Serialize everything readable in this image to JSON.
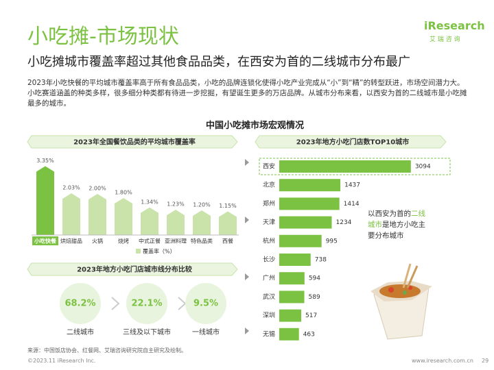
{
  "header": {
    "title": "小吃摊-市场现状",
    "subtitle": "小吃摊城市覆盖率超过其他食品品类，在西安为首的二线城市分布最广",
    "logo": "iResearch",
    "logo_sub": "艾 瑞 咨 询"
  },
  "body_text": "2023年小吃快餐的平均城市覆盖率高于所有食品品类，小吃的品牌连锁化使得小吃产业完成从“小”到“精”的转型跃进，市场空间潜力大。小吃赛道涵盖的种类多样，很多细分种类都有待进一步挖掘，有望诞生更多的万店品牌。从城市分布来看，以西安为首的二线城市是小吃摊最多的城市。",
  "section_title": "中国小吃摊市场宏观情况",
  "chart_data": [
    {
      "type": "bar",
      "title": "2023年全国餐饮品类的平均城市覆盖率",
      "categories": [
        "小吃快餐",
        "烘焙甜品",
        "火锅",
        "烧烤",
        "中式正餐",
        "亚洲料理",
        "特色品类",
        "西餐"
      ],
      "values": [
        3.35,
        2.03,
        2.0,
        1.8,
        1.34,
        1.23,
        1.2,
        1.15
      ],
      "value_labels": [
        "3.35%",
        "2.03%",
        "2.00%",
        "1.80%",
        "1.34%",
        "1.23%",
        "1.20%",
        "1.15%"
      ],
      "color": "#c9e3ab",
      "highlight_color": "#7cc242",
      "legend": "覆盖率（%）"
    },
    {
      "type": "hbar",
      "title": "2023年地方小吃门店数TOP10城市",
      "categories": [
        "西安",
        "北京",
        "郑州",
        "天津",
        "杭州",
        "长沙",
        "广州",
        "武汉",
        "深圳",
        "无锡"
      ],
      "values": [
        3094,
        1437,
        1414,
        1234,
        995,
        738,
        594,
        589,
        517,
        463
      ],
      "color": "#7cc242"
    },
    {
      "type": "stat",
      "title": "2023年地方小吃门店城市线分布比较",
      "categories": [
        "二线城市",
        "三线及以下城市",
        "一线城市"
      ],
      "values": [
        68.2,
        22.1,
        9.5
      ],
      "value_labels": [
        "68.2%",
        "22.1%",
        "9.5%"
      ],
      "color": "#7cc242"
    }
  ],
  "callout": [
    "以西安为首的",
    "二线城市",
    "是地方小吃主要分布城市"
  ],
  "footer": {
    "source": "来源：中国饭店协会、红餐网、艾瑞咨询研究院自主研究及绘制。",
    "copyright": "©2023.11 iResearch Inc.",
    "website": "www.iresearch.com.cn",
    "page": 29
  }
}
